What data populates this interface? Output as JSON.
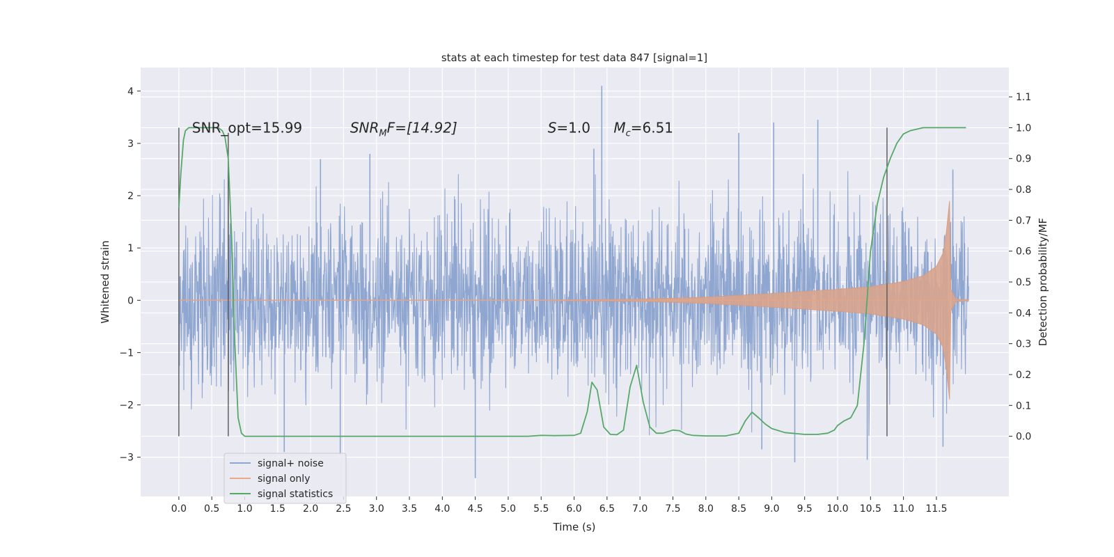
{
  "chart_data": {
    "type": "line",
    "title": "stats at each timestep for test data 847 [signal=1]",
    "xlabel": "Time (s)",
    "ylabel": "Whitened strain",
    "ylabel_right": "Detection probability/MF",
    "xlim": [
      -0.58,
      12.6
    ],
    "ylim": [
      -3.75,
      4.45
    ],
    "ylim_right": [
      -0.195,
      1.195
    ],
    "x_ticks": [
      0.0,
      0.5,
      1.0,
      1.5,
      2.0,
      2.5,
      3.0,
      3.5,
      4.0,
      4.5,
      5.0,
      5.5,
      6.0,
      6.5,
      7.0,
      7.5,
      8.0,
      8.5,
      9.0,
      9.5,
      10.0,
      10.5,
      11.0,
      11.5
    ],
    "y_ticks": [
      -3,
      -2,
      -1,
      0,
      1,
      2,
      3,
      4
    ],
    "y_ticks_right": [
      0.0,
      0.1,
      0.2,
      0.3,
      0.4,
      0.5,
      0.6,
      0.7,
      0.8,
      0.9,
      1.0,
      1.1
    ],
    "grid": true,
    "legend_position": "bottom-left",
    "annotations": [
      {
        "text": "SNR_opt=15.99",
        "x": 0.2,
        "y": 3.3
      },
      {
        "text": "SNR",
        "sub": "M",
        "tail": "F=[14.92]",
        "italic": true,
        "x": 2.6,
        "y": 3.3
      },
      {
        "text": "S",
        "tail": "=1.0",
        "italic": true,
        "x": 5.6,
        "y": 3.3
      },
      {
        "text": "M",
        "sub": "c",
        "tail": "=6.51",
        "italic": true,
        "x": 6.6,
        "y": 3.3
      }
    ],
    "vertical_markers": [
      {
        "x": 0.0,
        "y0": -2.6,
        "y1": 3.3
      },
      {
        "x": 0.75,
        "y0": -2.6,
        "y1": 3.2
      },
      {
        "x": 10.75,
        "y0": -2.6,
        "y1": 3.3
      }
    ],
    "series": [
      {
        "name": "signal+ noise",
        "color": "#8fa6d0",
        "kind": "noise_band",
        "x_range": [
          0.0,
          11.99
        ],
        "samples": 2400,
        "band_core": 1.5,
        "band_peak": 2.6,
        "spikes": [
          {
            "x": 0.75,
            "y": 2.55
          },
          {
            "x": 1.6,
            "y": -2.9
          },
          {
            "x": 2.15,
            "y": 2.7
          },
          {
            "x": 2.45,
            "y": -2.95
          },
          {
            "x": 2.9,
            "y": 2.8
          },
          {
            "x": 4.5,
            "y": -3.4
          },
          {
            "x": 6.3,
            "y": 2.9
          },
          {
            "x": 6.42,
            "y": 4.1
          },
          {
            "x": 8.5,
            "y": 3.2
          },
          {
            "x": 8.85,
            "y": -2.85
          },
          {
            "x": 9.03,
            "y": 3.4
          },
          {
            "x": 9.35,
            "y": -3.1
          },
          {
            "x": 9.7,
            "y": 3.45
          },
          {
            "x": 10.45,
            "y": -3.05
          },
          {
            "x": 11.6,
            "y": -2.8
          },
          {
            "x": 11.75,
            "y": 2.5
          }
        ]
      },
      {
        "name": "signal only",
        "color": "#dd8452",
        "kind": "chirp_envelope",
        "x": [
          0.0,
          5.5,
          7.0,
          8.0,
          9.0,
          9.5,
          10.0,
          10.5,
          11.0,
          11.3,
          11.5,
          11.6,
          11.65,
          11.7,
          11.72,
          11.8,
          11.99
        ],
        "amp": [
          0.0,
          0.005,
          0.02,
          0.06,
          0.13,
          0.17,
          0.21,
          0.26,
          0.36,
          0.47,
          0.65,
          0.9,
          1.3,
          1.9,
          0.2,
          0.02,
          0.01
        ]
      },
      {
        "name": "signal statistics",
        "color": "#55a868",
        "kind": "line",
        "x": [
          0.0,
          0.03,
          0.07,
          0.1,
          0.15,
          0.2,
          0.3,
          0.4,
          0.5,
          0.6,
          0.66,
          0.7,
          0.75,
          0.8,
          0.85,
          0.9,
          0.95,
          1.0,
          1.5,
          2.0,
          2.5,
          3.0,
          3.5,
          4.0,
          4.5,
          5.0,
          5.3,
          5.5,
          5.7,
          6.0,
          6.1,
          6.2,
          6.27,
          6.35,
          6.45,
          6.55,
          6.65,
          6.75,
          6.85,
          6.95,
          7.05,
          7.15,
          7.25,
          7.35,
          7.5,
          7.6,
          7.7,
          7.8,
          8.0,
          8.3,
          8.5,
          8.6,
          8.7,
          8.8,
          8.9,
          9.0,
          9.2,
          9.5,
          9.7,
          9.85,
          9.95,
          10.0,
          10.1,
          10.2,
          10.3,
          10.4,
          10.5,
          10.6,
          10.7,
          10.8,
          10.9,
          11.0,
          11.1,
          11.3,
          11.5,
          11.7,
          11.95
        ],
        "y": [
          0.74,
          0.85,
          0.96,
          0.99,
          1.0,
          1.0,
          1.0,
          1.0,
          1.0,
          1.0,
          0.99,
          0.97,
          0.9,
          0.65,
          0.3,
          0.06,
          0.01,
          0.0,
          0.0,
          0.0,
          0.0,
          0.0,
          0.0,
          0.0,
          0.0,
          0.0,
          0.0,
          0.003,
          0.002,
          0.003,
          0.01,
          0.08,
          0.175,
          0.15,
          0.03,
          0.006,
          0.005,
          0.02,
          0.16,
          0.23,
          0.11,
          0.03,
          0.01,
          0.01,
          0.02,
          0.018,
          0.007,
          0.003,
          0.001,
          0.001,
          0.01,
          0.05,
          0.078,
          0.06,
          0.04,
          0.025,
          0.012,
          0.006,
          0.006,
          0.01,
          0.02,
          0.035,
          0.05,
          0.06,
          0.1,
          0.3,
          0.6,
          0.75,
          0.84,
          0.9,
          0.95,
          0.98,
          0.99,
          1.0,
          1.0,
          1.0,
          1.0
        ]
      }
    ]
  }
}
